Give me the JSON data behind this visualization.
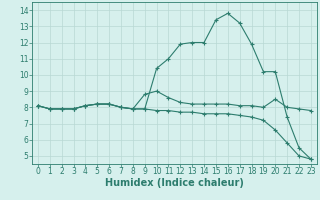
{
  "xlabel": "Humidex (Indice chaleur)",
  "x_values": [
    0,
    1,
    2,
    3,
    4,
    5,
    6,
    7,
    8,
    9,
    10,
    11,
    12,
    13,
    14,
    15,
    16,
    17,
    18,
    19,
    20,
    21,
    22,
    23
  ],
  "line1": [
    8.1,
    7.9,
    7.9,
    7.9,
    8.1,
    8.2,
    8.2,
    8.0,
    7.9,
    7.9,
    10.4,
    11.0,
    11.9,
    12.0,
    12.0,
    13.4,
    13.8,
    13.2,
    11.9,
    10.2,
    10.2,
    7.4,
    5.5,
    4.8
  ],
  "line2": [
    8.1,
    7.9,
    7.9,
    7.9,
    8.1,
    8.2,
    8.2,
    8.0,
    7.9,
    8.8,
    9.0,
    8.6,
    8.3,
    8.2,
    8.2,
    8.2,
    8.2,
    8.1,
    8.1,
    8.0,
    8.5,
    8.0,
    7.9,
    7.8
  ],
  "line3": [
    8.1,
    7.9,
    7.9,
    7.9,
    8.1,
    8.2,
    8.2,
    8.0,
    7.9,
    7.9,
    7.8,
    7.8,
    7.7,
    7.7,
    7.6,
    7.6,
    7.6,
    7.5,
    7.4,
    7.2,
    6.6,
    5.8,
    5.0,
    4.8
  ],
  "line_color": "#2d7d6e",
  "bg_color": "#d6f0ed",
  "grid_color": "#b8d8d4",
  "ylim": [
    4.5,
    14.5
  ],
  "yticks": [
    5,
    6,
    7,
    8,
    9,
    10,
    11,
    12,
    13,
    14
  ],
  "xlim": [
    -0.5,
    23.5
  ],
  "xticks": [
    0,
    1,
    2,
    3,
    4,
    5,
    6,
    7,
    8,
    9,
    10,
    11,
    12,
    13,
    14,
    15,
    16,
    17,
    18,
    19,
    20,
    21,
    22,
    23
  ],
  "tick_fontsize": 5.5,
  "xlabel_fontsize": 7.0
}
